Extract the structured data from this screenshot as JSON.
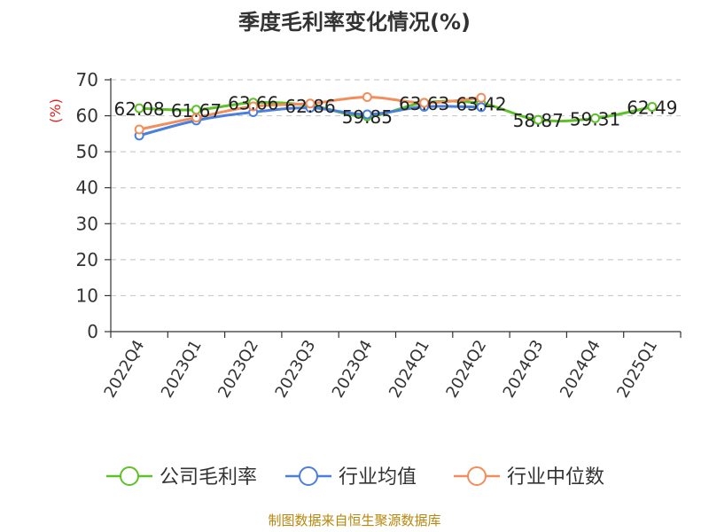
{
  "chart_data": {
    "type": "line",
    "title": "季度毛利率变化情况(%)",
    "ylabel": "(%)",
    "ylim": [
      0,
      70
    ],
    "yticks": [
      0,
      10,
      20,
      30,
      40,
      50,
      60,
      70
    ],
    "grid": true,
    "legend_position": "bottom",
    "categories": [
      "2022Q4",
      "2023Q1",
      "2023Q2",
      "2023Q3",
      "2023Q4",
      "2024Q1",
      "2024Q2",
      "2024Q3",
      "2024Q4",
      "2025Q1"
    ],
    "series": [
      {
        "name": "公司毛利率",
        "color": "#5fc12a",
        "labeled": true,
        "values": [
          62.08,
          61.67,
          63.66,
          62.86,
          59.85,
          63.63,
          63.42,
          58.87,
          59.31,
          62.49
        ]
      },
      {
        "name": "行业均值",
        "color": "#4b7fdc",
        "labeled": false,
        "values": [
          54.5,
          58.7,
          61.0,
          62.2,
          60.4,
          62.5,
          62.4,
          null,
          null,
          null
        ]
      },
      {
        "name": "行业中位数",
        "color": "#f28d5c",
        "labeled": false,
        "values": [
          56.2,
          59.5,
          62.6,
          63.4,
          65.2,
          63.6,
          65.0,
          null,
          null,
          null
        ]
      }
    ]
  },
  "source_note": "制图数据来自恒生聚源数据库",
  "colors": {
    "text": "#333333",
    "axis": "#333333",
    "grid": "#cccccc",
    "ylabel": "#e02020",
    "source": "#b8860b"
  }
}
